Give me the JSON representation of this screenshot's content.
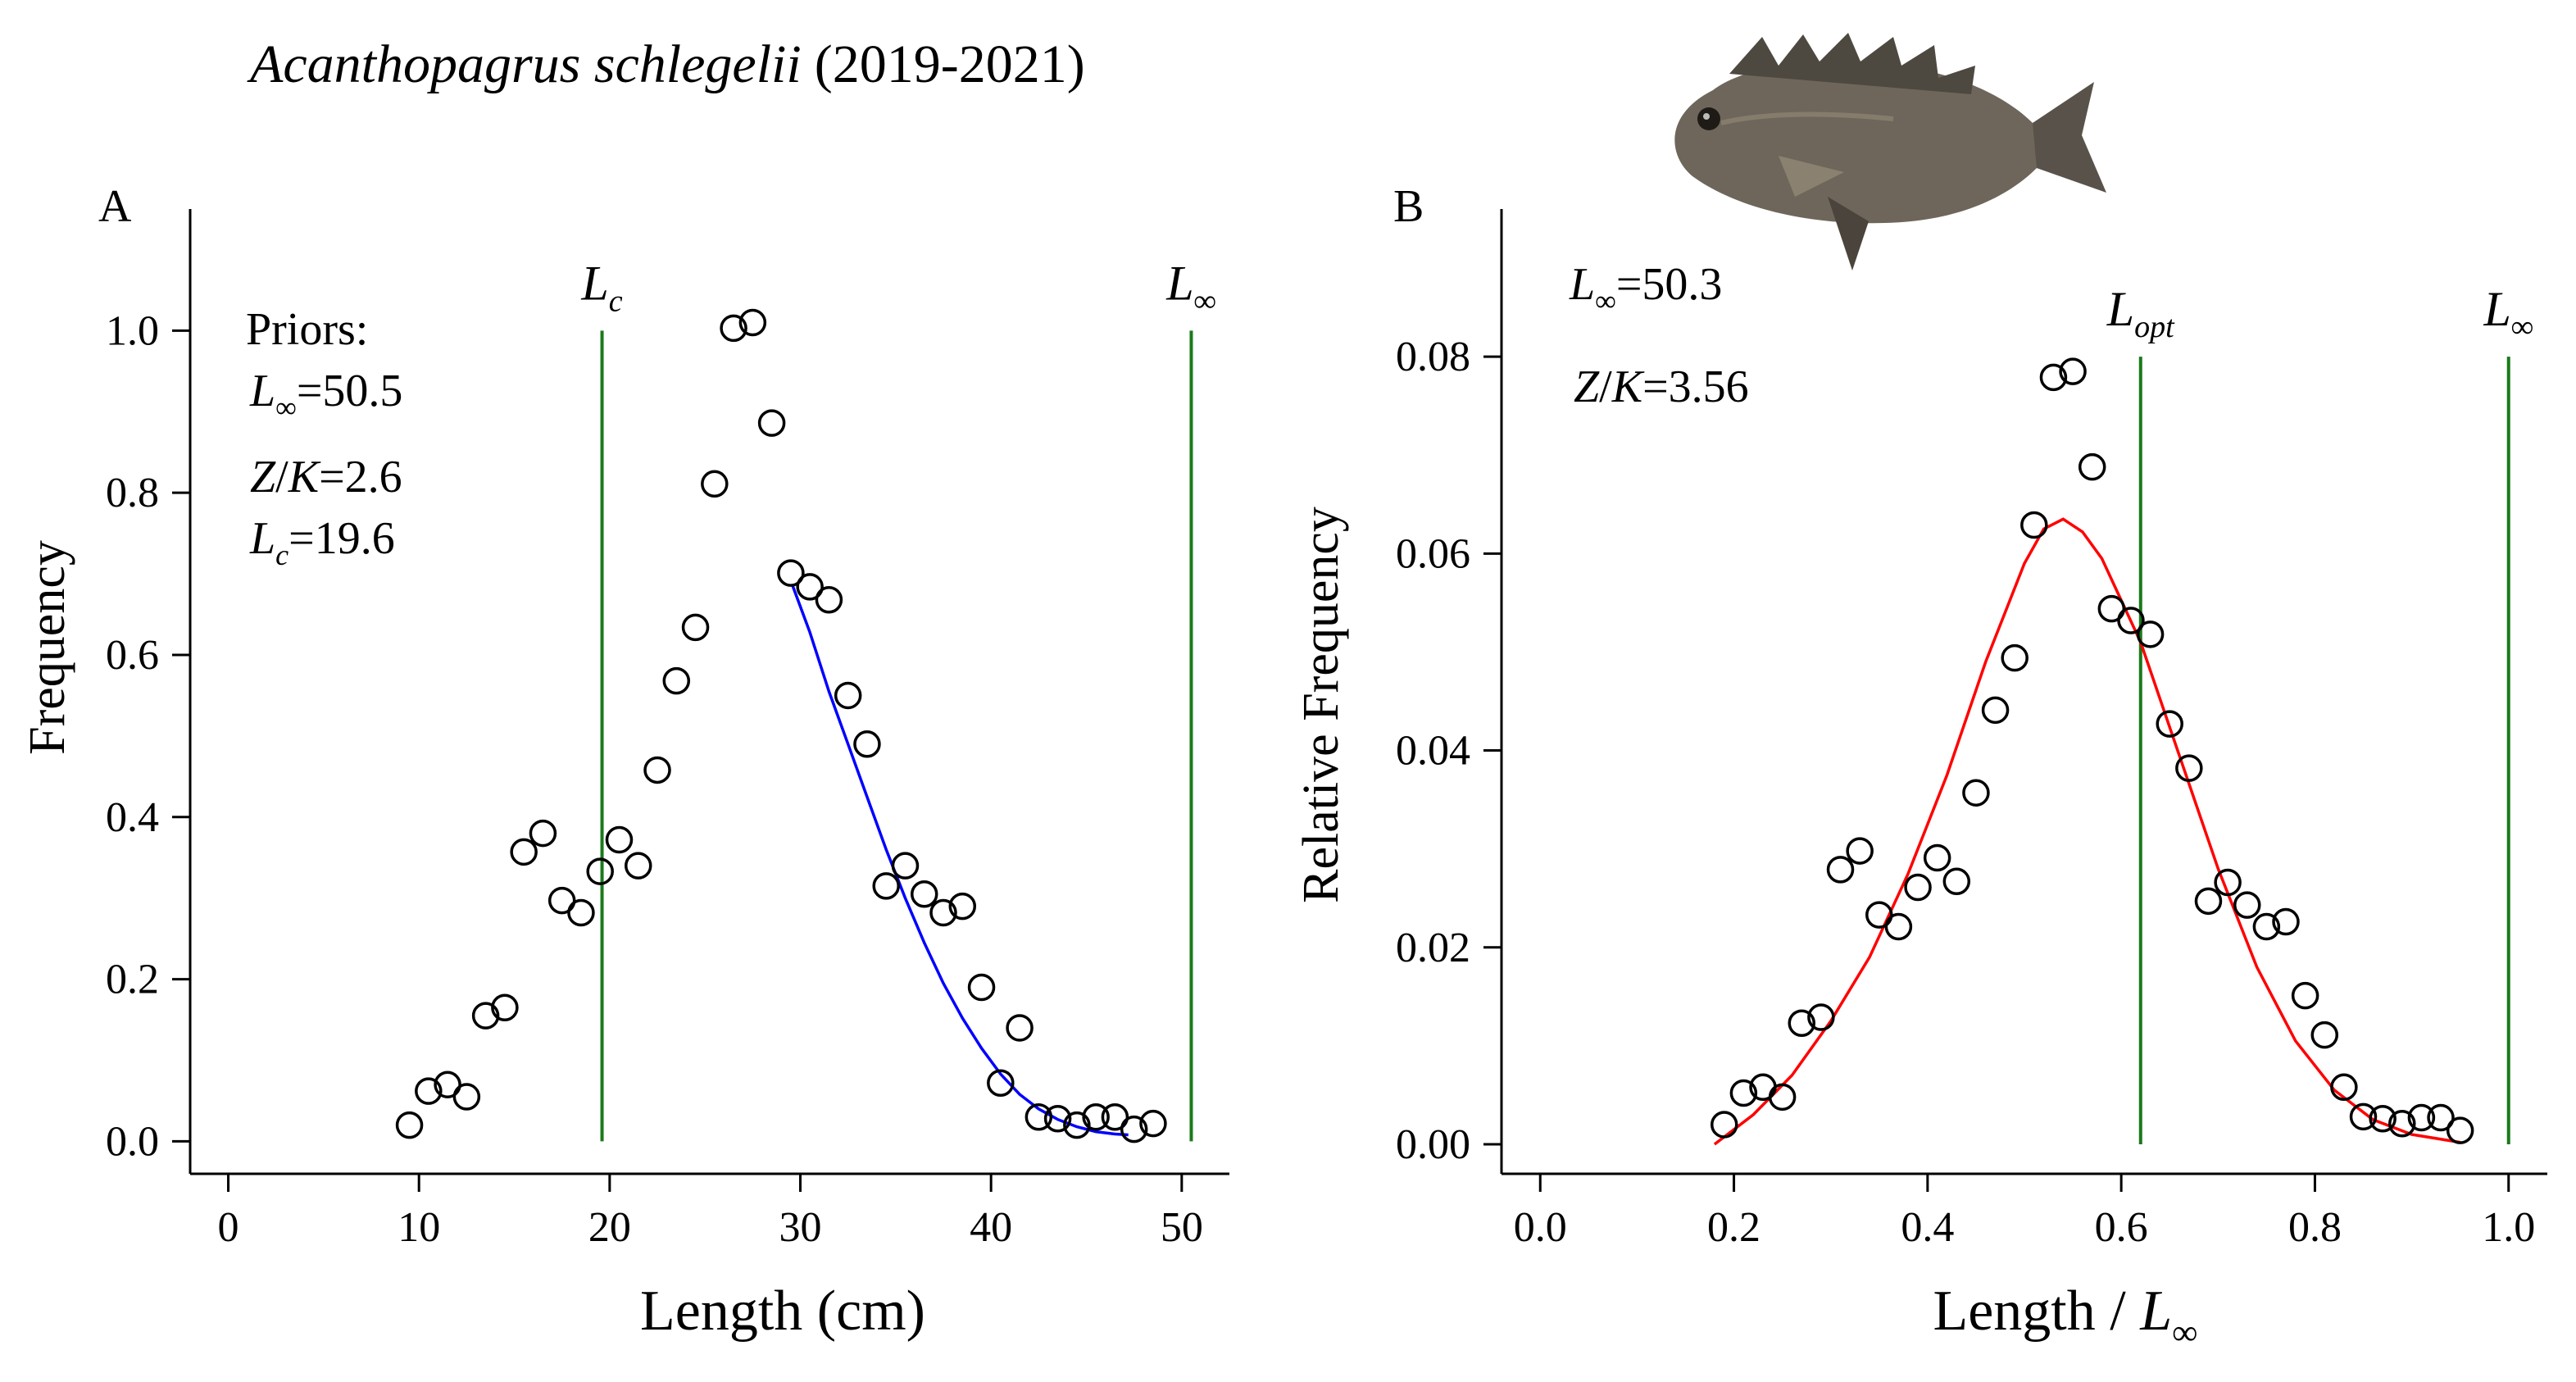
{
  "figure": {
    "title_species": "Acanthopagrus schlegelii",
    "title_years": "(2019-2021)",
    "fish_image": "fish-photo-black-seabream"
  },
  "chart_data": [
    {
      "type": "scatter",
      "panel_label": "A",
      "xlabel": "Length (cm)",
      "ylabel": "Frequency",
      "xlim": [
        -2,
        52.5
      ],
      "ylim": [
        -0.04,
        1.15
      ],
      "xticks": [
        0,
        10,
        20,
        30,
        40,
        50
      ],
      "xtick_labels": [
        "0",
        "10",
        "20",
        "30",
        "40",
        "50"
      ],
      "yticks": [
        0.0,
        0.2,
        0.4,
        0.6,
        0.8,
        1.0
      ],
      "ytick_labels": [
        "0.0",
        "0.2",
        "0.4",
        "0.6",
        "0.8",
        "1.0"
      ],
      "points": {
        "x": [
          9.5,
          10.5,
          11.5,
          12.5,
          13.5,
          14.5,
          15.5,
          16.5,
          17.5,
          18.5,
          19.5,
          20.5,
          21.5,
          22.5,
          23.5,
          24.5,
          25.5,
          26.5,
          27.5,
          28.5,
          29.5,
          30.5,
          31.5,
          32.5,
          33.5,
          34.5,
          35.5,
          36.5,
          37.5,
          38.5,
          39.5,
          40.5,
          41.5,
          42.5,
          43.5,
          44.5,
          45.5,
          46.5,
          47.5,
          48.5
        ],
        "y": [
          0.02,
          0.062,
          0.07,
          0.055,
          0.155,
          0.165,
          0.357,
          0.38,
          0.297,
          0.282,
          0.333,
          0.372,
          0.34,
          0.458,
          0.568,
          0.634,
          0.811,
          1.003,
          1.01,
          0.886,
          0.701,
          0.684,
          0.668,
          0.55,
          0.49,
          0.315,
          0.34,
          0.305,
          0.282,
          0.29,
          0.19,
          0.072,
          0.14,
          0.03,
          0.028,
          0.02,
          0.03,
          0.03,
          0.015,
          0.022
        ]
      },
      "fit_curve": {
        "color": "#0000ff",
        "x": [
          29.6,
          30.5,
          31.5,
          32.5,
          33.5,
          34.5,
          35.5,
          36.5,
          37.5,
          38.5,
          39.5,
          40.5,
          41.5,
          42.5,
          43.5,
          44.5,
          45.5,
          46.5,
          47.2
        ],
        "y": [
          0.685,
          0.628,
          0.555,
          0.49,
          0.425,
          0.36,
          0.3,
          0.245,
          0.195,
          0.152,
          0.115,
          0.083,
          0.058,
          0.04,
          0.027,
          0.018,
          0.012,
          0.009,
          0.008
        ]
      },
      "vlines": [
        {
          "x": 19.6,
          "ymax": 1.0,
          "label_main": "L",
          "label_sub": "c",
          "color": "#1a7a1a"
        },
        {
          "x": 50.5,
          "ymax": 1.0,
          "label_main": "L",
          "label_sub": "∞",
          "color": "#1a7a1a"
        }
      ],
      "annotations": [
        {
          "id": "priors",
          "text": "Priors:"
        },
        {
          "id": "linf",
          "main": "L",
          "sub": "∞",
          "rest": "=50.5"
        },
        {
          "id": "zk",
          "main": "Z",
          "slash": "/",
          "main2": "K",
          "rest": "=2.6"
        },
        {
          "id": "lc",
          "main": "L",
          "sub": "c",
          "rest": "=19.6"
        }
      ]
    },
    {
      "type": "scatter",
      "panel_label": "B",
      "xlabel_main": "Length / ",
      "xlabel_L": "L",
      "xlabel_sub": "∞",
      "ylabel": "Relative Frequency",
      "xlim": [
        -0.04,
        1.04
      ],
      "ylim": [
        -0.003,
        0.095
      ],
      "xticks": [
        0.0,
        0.2,
        0.4,
        0.6,
        0.8,
        1.0
      ],
      "xtick_labels": [
        "0.0",
        "0.2",
        "0.4",
        "0.6",
        "0.8",
        "1.0"
      ],
      "yticks": [
        0.0,
        0.02,
        0.04,
        0.06,
        0.08
      ],
      "ytick_labels": [
        "0.00",
        "0.02",
        "0.04",
        "0.06",
        "0.08"
      ],
      "points": {
        "x": [
          0.19,
          0.21,
          0.23,
          0.25,
          0.27,
          0.29,
          0.31,
          0.33,
          0.35,
          0.37,
          0.39,
          0.41,
          0.43,
          0.45,
          0.47,
          0.49,
          0.51,
          0.53,
          0.55,
          0.57,
          0.59,
          0.61,
          0.63,
          0.65,
          0.67,
          0.69,
          0.71,
          0.73,
          0.75,
          0.77,
          0.79,
          0.81,
          0.83,
          0.85,
          0.87,
          0.89,
          0.91,
          0.93,
          0.95
        ],
        "y": [
          0.002,
          0.0052,
          0.0058,
          0.0048,
          0.0123,
          0.0129,
          0.0279,
          0.0298,
          0.0233,
          0.0221,
          0.0261,
          0.0291,
          0.0267,
          0.0357,
          0.0441,
          0.0494,
          0.0629,
          0.0779,
          0.0785,
          0.0688,
          0.0544,
          0.0532,
          0.0518,
          0.0427,
          0.0382,
          0.0247,
          0.0266,
          0.0243,
          0.0221,
          0.0226,
          0.0151,
          0.0111,
          0.0058,
          0.0028,
          0.0026,
          0.0021,
          0.0027,
          0.0027,
          0.0014
        ]
      },
      "fit_curve": {
        "color": "#ff0000",
        "x": [
          0.18,
          0.22,
          0.26,
          0.3,
          0.34,
          0.38,
          0.42,
          0.46,
          0.5,
          0.52,
          0.54,
          0.56,
          0.58,
          0.62,
          0.66,
          0.7,
          0.74,
          0.78,
          0.82,
          0.86,
          0.9,
          0.95
        ],
        "y": [
          0.0,
          0.003,
          0.007,
          0.0125,
          0.019,
          0.0275,
          0.0375,
          0.049,
          0.059,
          0.0625,
          0.0635,
          0.0622,
          0.0595,
          0.051,
          0.0395,
          0.028,
          0.018,
          0.0105,
          0.0055,
          0.0025,
          0.001,
          0.0002
        ]
      },
      "vlines": [
        {
          "x": 0.62,
          "ymax": 0.08,
          "label_main": "L",
          "label_sub": "opt",
          "color": "#1a7a1a"
        },
        {
          "x": 1.0,
          "ymax": 0.08,
          "label_main": "L",
          "label_sub": "∞",
          "color": "#1a7a1a"
        }
      ],
      "annotations": [
        {
          "id": "linf",
          "main": "L",
          "sub": "∞",
          "rest": "=50.3"
        },
        {
          "id": "zk",
          "main": "Z",
          "slash": "/",
          "main2": "K",
          "rest": "=3.56"
        }
      ]
    }
  ]
}
